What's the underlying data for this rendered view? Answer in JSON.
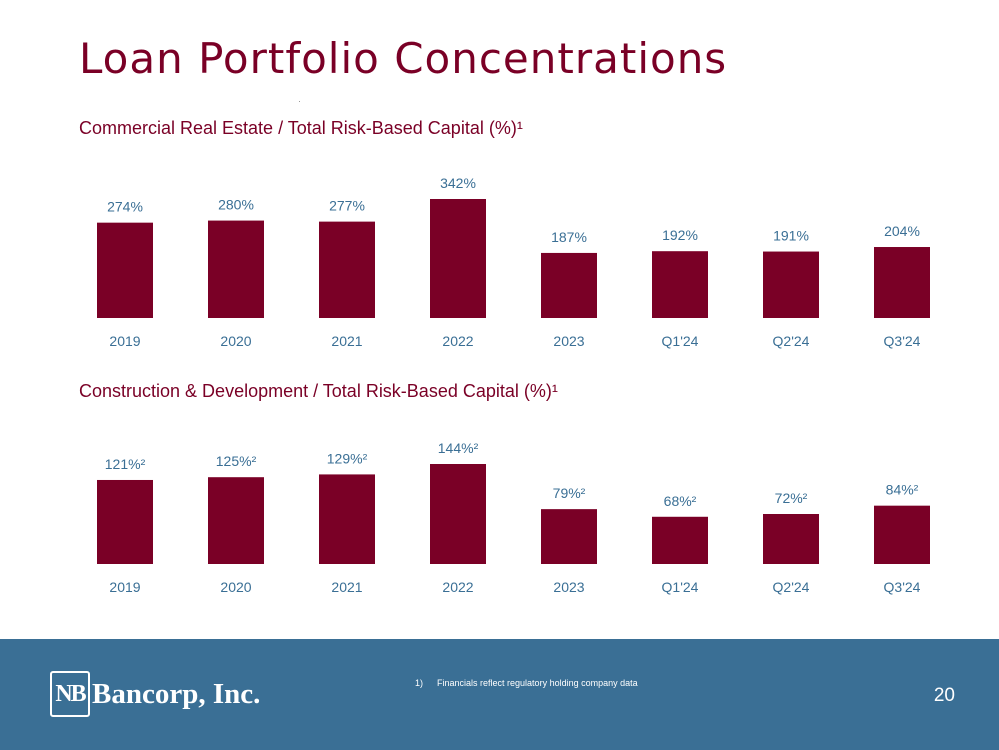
{
  "slide": {
    "title": "Loan Portfolio Concentrations",
    "page_number": "20"
  },
  "footer": {
    "logo_mark": "NB",
    "logo_text": "Bancorp, Inc.",
    "footnote_number": "1)",
    "footnote_text": "Financials reflect regulatory holding company data"
  },
  "colors": {
    "bar": "#7a0026",
    "title": "#7a0026",
    "label": "#3a6f95",
    "footer_bg": "#3a6f95"
  },
  "chart_data": [
    {
      "type": "bar",
      "title": "Commercial Real Estate / Total Risk-Based Capital (%)¹",
      "categories": [
        "2019",
        "2020",
        "2021",
        "2022",
        "2023",
        "Q1'24",
        "Q2'24",
        "Q3'24"
      ],
      "values": [
        274,
        280,
        277,
        342,
        187,
        192,
        191,
        204
      ],
      "labels": [
        "274%",
        "280%",
        "277%",
        "342%",
        "187%",
        "192%",
        "191%",
        "204%"
      ],
      "xlabel": "",
      "ylabel": "",
      "ylim": [
        0,
        342
      ]
    },
    {
      "type": "bar",
      "title": "Construction & Development / Total Risk-Based Capital (%)¹",
      "categories": [
        "2019",
        "2020",
        "2021",
        "2022",
        "2023",
        "Q1'24",
        "Q2'24",
        "Q3'24"
      ],
      "values": [
        121,
        125,
        129,
        144,
        79,
        68,
        72,
        84
      ],
      "labels": [
        "121%²",
        "125%²",
        "129%²",
        "144%²",
        "79%²",
        "68%²",
        "72%²",
        "84%²"
      ],
      "xlabel": "",
      "ylabel": "",
      "ylim": [
        0,
        144
      ]
    }
  ]
}
